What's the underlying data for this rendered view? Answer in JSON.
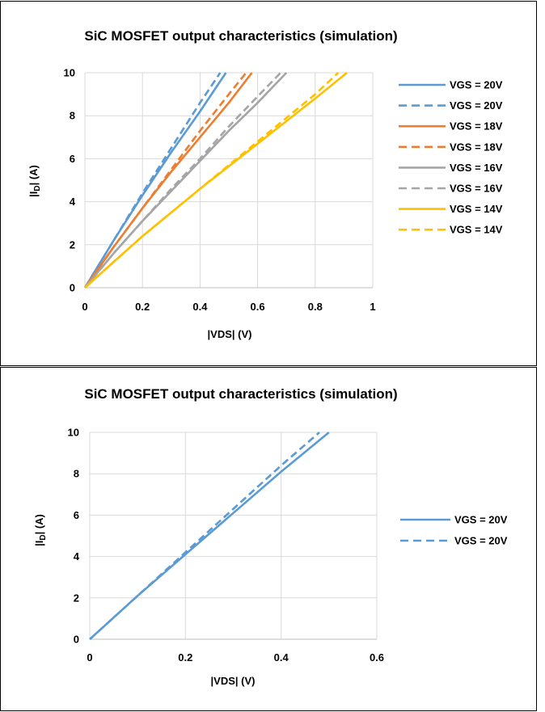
{
  "chart_data": [
    {
      "type": "line",
      "title": "SiC MOSFET output characteristics (simulation)",
      "xlabel": "|VDS| (V)",
      "ylabel": "|ID| (A)",
      "ylabel_parts": {
        "pre": "|I",
        "sub": "D",
        "post": "| (A)"
      },
      "xlim": [
        0,
        1
      ],
      "ylim": [
        0,
        10
      ],
      "x_ticks": [
        "0",
        "0.2",
        "0.4",
        "0.6",
        "0.8",
        "1"
      ],
      "y_ticks": [
        "0",
        "2",
        "4",
        "6",
        "8",
        "10"
      ],
      "grid": true,
      "legend_position": "right",
      "series": [
        {
          "name": "VGS = 20V",
          "color": "#5B9BD5",
          "style": "solid",
          "x": [
            0,
            0.1,
            0.2,
            0.3,
            0.4,
            0.49
          ],
          "y": [
            0,
            2.2,
            4.3,
            6.3,
            8.2,
            10
          ]
        },
        {
          "name": "VGS = 20V",
          "color": "#5B9BD5",
          "style": "dashed",
          "x": [
            0,
            0.1,
            0.2,
            0.3,
            0.4,
            0.47
          ],
          "y": [
            0,
            2.2,
            4.4,
            6.5,
            8.6,
            10
          ]
        },
        {
          "name": "VGS = 18V",
          "color": "#ED7D31",
          "style": "solid",
          "x": [
            0,
            0.1,
            0.2,
            0.3,
            0.4,
            0.5,
            0.58
          ],
          "y": [
            0,
            1.9,
            3.7,
            5.4,
            7.0,
            8.6,
            10
          ]
        },
        {
          "name": "VGS = 18V",
          "color": "#ED7D31",
          "style": "dashed",
          "x": [
            0,
            0.1,
            0.2,
            0.3,
            0.4,
            0.5,
            0.56
          ],
          "y": [
            0,
            1.9,
            3.7,
            5.5,
            7.3,
            9.0,
            10
          ]
        },
        {
          "name": "VGS = 16V",
          "color": "#A5A5A5",
          "style": "solid",
          "x": [
            0,
            0.1,
            0.2,
            0.3,
            0.4,
            0.5,
            0.6,
            0.7
          ],
          "y": [
            0,
            1.6,
            3.1,
            4.5,
            5.9,
            7.3,
            8.6,
            10
          ]
        },
        {
          "name": "VGS = 16V",
          "color": "#A5A5A5",
          "style": "dashed",
          "x": [
            0,
            0.1,
            0.2,
            0.3,
            0.4,
            0.5,
            0.6,
            0.68
          ],
          "y": [
            0,
            1.6,
            3.1,
            4.6,
            6.0,
            7.5,
            8.9,
            10
          ]
        },
        {
          "name": "VGS = 14V",
          "color": "#FFC000",
          "style": "solid",
          "x": [
            0,
            0.2,
            0.4,
            0.6,
            0.8,
            0.91
          ],
          "y": [
            0,
            2.4,
            4.6,
            6.7,
            8.8,
            10
          ]
        },
        {
          "name": "VGS = 14V",
          "color": "#FFC000",
          "style": "dashed",
          "x": [
            0,
            0.2,
            0.4,
            0.6,
            0.8,
            0.88
          ],
          "y": [
            0,
            2.4,
            4.6,
            6.8,
            9.0,
            10
          ]
        }
      ]
    },
    {
      "type": "line",
      "title": "SiC MOSFET output characteristics (simulation)",
      "xlabel": "|VDS| (V)",
      "ylabel": "|ID| (A)",
      "ylabel_parts": {
        "pre": "|I",
        "sub": "D",
        "post": "| (A)"
      },
      "xlim": [
        0,
        0.6
      ],
      "ylim": [
        0,
        10
      ],
      "x_ticks": [
        "0",
        "0.2",
        "0.4",
        "0.6"
      ],
      "y_ticks": [
        "0",
        "2",
        "4",
        "6",
        "8",
        "10"
      ],
      "grid": true,
      "legend_position": "right",
      "series": [
        {
          "name": "VGS = 20V",
          "color": "#5B9BD5",
          "style": "solid",
          "x": [
            0,
            0.1,
            0.2,
            0.3,
            0.4,
            0.5
          ],
          "y": [
            0,
            2.1,
            4.1,
            6.1,
            8.1,
            10
          ]
        },
        {
          "name": "VGS = 20V",
          "color": "#5B9BD5",
          "style": "dashed",
          "x": [
            0,
            0.1,
            0.2,
            0.3,
            0.4,
            0.48
          ],
          "y": [
            0,
            2.1,
            4.2,
            6.3,
            8.4,
            10
          ]
        }
      ]
    }
  ]
}
